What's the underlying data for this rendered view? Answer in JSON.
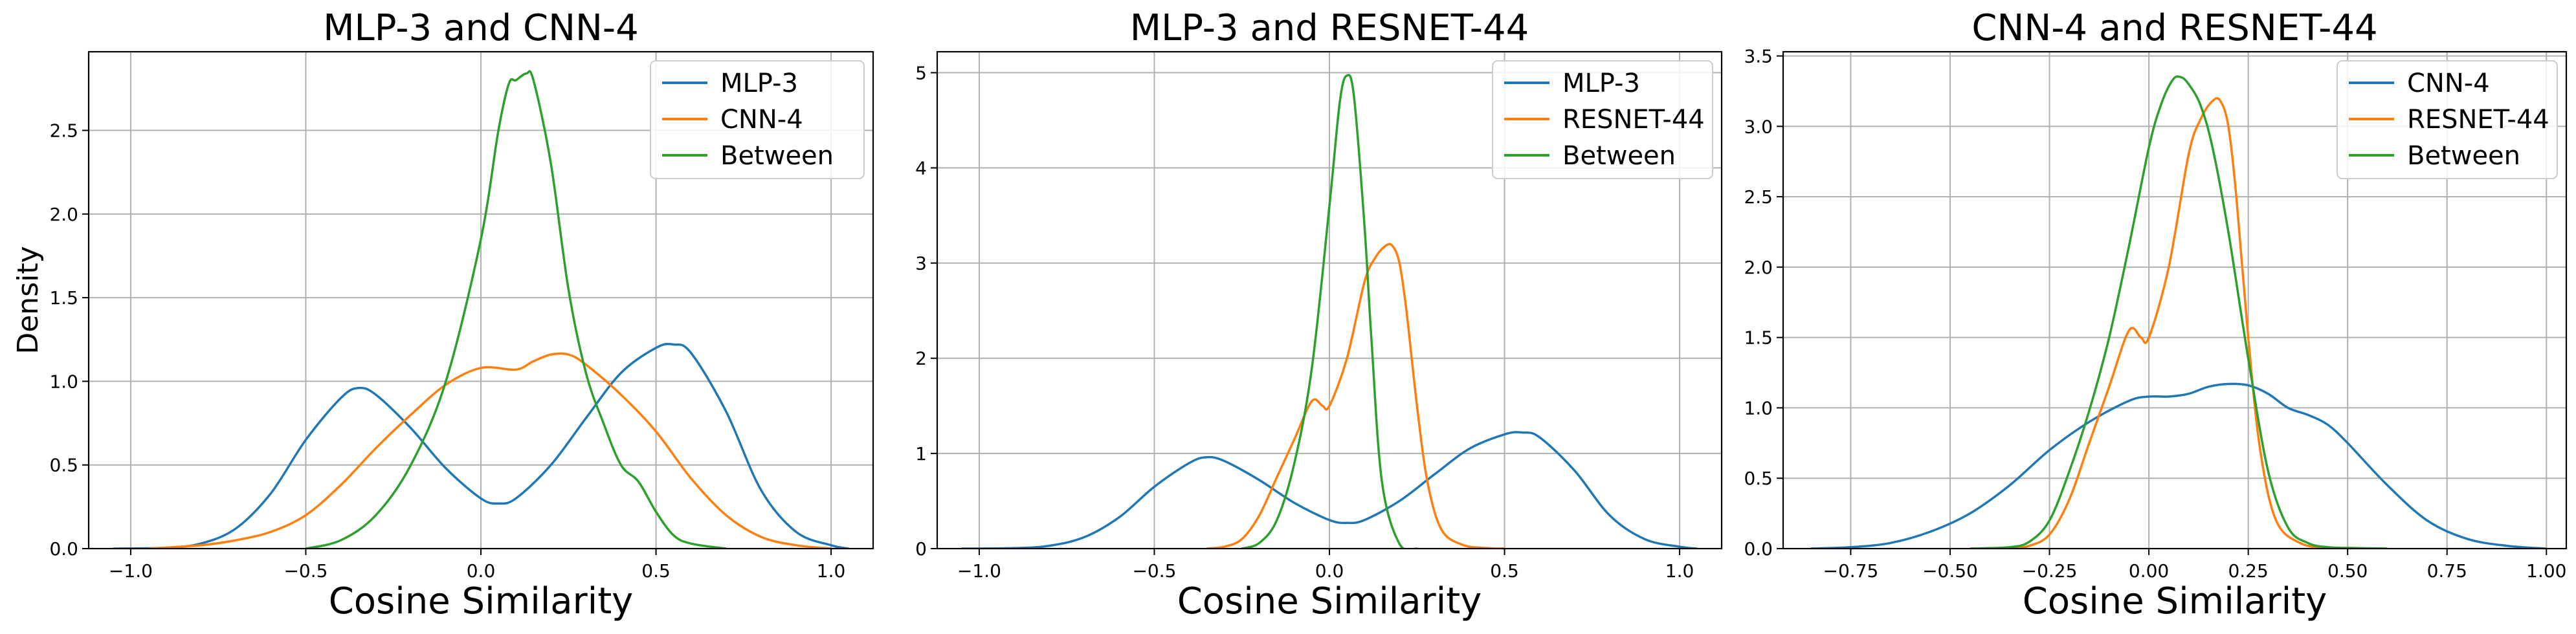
{
  "chart_data": [
    {
      "type": "line",
      "title": "MLP-3 and CNN-4",
      "xlabel": "Cosine Similarity",
      "ylabel": "Density",
      "xlim": [
        -1.12,
        1.12
      ],
      "ylim": [
        0,
        2.97
      ],
      "xticks": [
        -1.0,
        -0.5,
        0.0,
        0.5,
        1.0
      ],
      "xtick_labels": [
        "−1.0",
        "−0.5",
        "0.0",
        "0.5",
        "1.0"
      ],
      "yticks": [
        0.0,
        0.5,
        1.0,
        1.5,
        2.0,
        2.5
      ],
      "ytick_labels": [
        "0.0",
        "0.5",
        "1.0",
        "1.5",
        "2.0",
        "2.5"
      ],
      "grid": true,
      "legend": "top-right",
      "series": [
        {
          "name": "MLP-3",
          "color": "#1f77b4",
          "x": [
            -1.05,
            -0.9,
            -0.8,
            -0.7,
            -0.6,
            -0.5,
            -0.4,
            -0.35,
            -0.3,
            -0.2,
            -0.1,
            0.0,
            0.05,
            0.1,
            0.2,
            0.3,
            0.4,
            0.5,
            0.55,
            0.6,
            0.7,
            0.8,
            0.9,
            1.0,
            1.05
          ],
          "y": [
            0.0,
            0.005,
            0.03,
            0.12,
            0.33,
            0.65,
            0.9,
            0.96,
            0.92,
            0.72,
            0.48,
            0.3,
            0.27,
            0.3,
            0.5,
            0.78,
            1.05,
            1.2,
            1.22,
            1.17,
            0.82,
            0.35,
            0.1,
            0.02,
            0.0
          ]
        },
        {
          "name": "CNN-4",
          "color": "#ff7f0e",
          "x": [
            -0.95,
            -0.8,
            -0.7,
            -0.6,
            -0.5,
            -0.4,
            -0.3,
            -0.2,
            -0.1,
            0.0,
            0.1,
            0.15,
            0.2,
            0.25,
            0.3,
            0.4,
            0.5,
            0.6,
            0.7,
            0.8,
            0.9,
            1.0
          ],
          "y": [
            0.0,
            0.02,
            0.05,
            0.1,
            0.2,
            0.38,
            0.6,
            0.8,
            0.98,
            1.08,
            1.07,
            1.12,
            1.16,
            1.16,
            1.1,
            0.92,
            0.7,
            0.42,
            0.2,
            0.07,
            0.02,
            0.0
          ]
        },
        {
          "name": "Between",
          "color": "#2ca02c",
          "x": [
            -0.5,
            -0.4,
            -0.3,
            -0.2,
            -0.1,
            0.0,
            0.05,
            0.08,
            0.1,
            0.13,
            0.15,
            0.2,
            0.25,
            0.3,
            0.35,
            0.4,
            0.45,
            0.5,
            0.55,
            0.6,
            0.7
          ],
          "y": [
            0.0,
            0.05,
            0.2,
            0.5,
            1.0,
            1.85,
            2.5,
            2.78,
            2.8,
            2.84,
            2.8,
            2.3,
            1.55,
            1.05,
            0.75,
            0.5,
            0.4,
            0.22,
            0.08,
            0.03,
            0.0
          ]
        }
      ]
    },
    {
      "type": "line",
      "title": "MLP-3 and RESNET-44",
      "xlabel": "Cosine Similarity",
      "ylabel": "",
      "xlim": [
        -1.12,
        1.12
      ],
      "ylim": [
        0,
        5.22
      ],
      "xticks": [
        -1.0,
        -0.5,
        0.0,
        0.5,
        1.0
      ],
      "xtick_labels": [
        "−1.0",
        "−0.5",
        "0.0",
        "0.5",
        "1.0"
      ],
      "yticks": [
        0,
        1,
        2,
        3,
        4,
        5
      ],
      "ytick_labels": [
        "0",
        "1",
        "2",
        "3",
        "4",
        "5"
      ],
      "grid": true,
      "legend": "top-right",
      "series": [
        {
          "name": "MLP-3",
          "color": "#1f77b4",
          "x": [
            -1.05,
            -0.9,
            -0.8,
            -0.7,
            -0.6,
            -0.5,
            -0.4,
            -0.35,
            -0.3,
            -0.2,
            -0.1,
            0.0,
            0.05,
            0.1,
            0.2,
            0.3,
            0.4,
            0.5,
            0.55,
            0.6,
            0.7,
            0.8,
            0.9,
            1.0,
            1.05
          ],
          "y": [
            0.0,
            0.005,
            0.03,
            0.12,
            0.33,
            0.65,
            0.9,
            0.96,
            0.92,
            0.72,
            0.48,
            0.3,
            0.27,
            0.3,
            0.5,
            0.78,
            1.05,
            1.2,
            1.22,
            1.17,
            0.82,
            0.35,
            0.1,
            0.02,
            0.0
          ]
        },
        {
          "name": "RESNET-44",
          "color": "#ff7f0e",
          "x": [
            -0.35,
            -0.3,
            -0.25,
            -0.2,
            -0.15,
            -0.1,
            -0.05,
            -0.02,
            0.0,
            0.05,
            0.1,
            0.13,
            0.16,
            0.18,
            0.2,
            0.22,
            0.25,
            0.28,
            0.32,
            0.38,
            0.45,
            0.5
          ],
          "y": [
            0.0,
            0.02,
            0.1,
            0.35,
            0.75,
            1.15,
            1.55,
            1.5,
            1.5,
            2.0,
            2.8,
            3.05,
            3.18,
            3.18,
            3.0,
            2.5,
            1.5,
            0.7,
            0.2,
            0.04,
            0.005,
            0.0
          ]
        },
        {
          "name": "Between",
          "color": "#2ca02c",
          "x": [
            -0.25,
            -0.2,
            -0.15,
            -0.1,
            -0.05,
            0.0,
            0.03,
            0.05,
            0.07,
            0.1,
            0.12,
            0.15,
            0.2,
            0.25
          ],
          "y": [
            0.0,
            0.06,
            0.3,
            0.9,
            1.9,
            3.6,
            4.7,
            4.97,
            4.75,
            3.4,
            2.2,
            0.7,
            0.05,
            0.0
          ]
        }
      ]
    },
    {
      "type": "line",
      "title": "CNN-4 and RESNET-44",
      "xlabel": "Cosine Similarity",
      "ylabel": "",
      "xlim": [
        -0.92,
        1.05
      ],
      "ylim": [
        0,
        3.53
      ],
      "xticks": [
        -0.75,
        -0.5,
        -0.25,
        0.0,
        0.25,
        0.5,
        0.75,
        1.0
      ],
      "xtick_labels": [
        "−0.75",
        "−0.50",
        "−0.25",
        "0.00",
        "0.25",
        "0.50",
        "0.75",
        "1.00"
      ],
      "yticks": [
        0.0,
        0.5,
        1.0,
        1.5,
        2.0,
        2.5,
        3.0,
        3.5
      ],
      "ytick_labels": [
        "0.0",
        "0.5",
        "1.0",
        "1.5",
        "2.0",
        "2.5",
        "3.0",
        "3.5"
      ],
      "grid": true,
      "legend": "top-right",
      "series": [
        {
          "name": "CNN-4",
          "color": "#1f77b4",
          "x": [
            -0.85,
            -0.75,
            -0.65,
            -0.55,
            -0.45,
            -0.35,
            -0.25,
            -0.15,
            -0.05,
            0.0,
            0.05,
            0.1,
            0.15,
            0.2,
            0.25,
            0.3,
            0.35,
            0.4,
            0.45,
            0.5,
            0.6,
            0.7,
            0.8,
            0.9,
            1.0
          ],
          "y": [
            0.0,
            0.01,
            0.04,
            0.12,
            0.25,
            0.45,
            0.7,
            0.9,
            1.05,
            1.08,
            1.08,
            1.1,
            1.15,
            1.17,
            1.16,
            1.1,
            1.0,
            0.95,
            0.88,
            0.75,
            0.45,
            0.2,
            0.07,
            0.02,
            0.0
          ]
        },
        {
          "name": "RESNET-44",
          "color": "#ff7f0e",
          "x": [
            -0.35,
            -0.3,
            -0.25,
            -0.2,
            -0.15,
            -0.1,
            -0.05,
            -0.02,
            0.0,
            0.05,
            0.1,
            0.13,
            0.16,
            0.18,
            0.2,
            0.22,
            0.25,
            0.28,
            0.32,
            0.38,
            0.45,
            0.5
          ],
          "y": [
            0.0,
            0.02,
            0.1,
            0.35,
            0.75,
            1.15,
            1.55,
            1.5,
            1.5,
            2.0,
            2.8,
            3.05,
            3.18,
            3.18,
            3.0,
            2.5,
            1.5,
            0.7,
            0.2,
            0.04,
            0.005,
            0.0
          ]
        },
        {
          "name": "Between",
          "color": "#2ca02c",
          "x": [
            -0.45,
            -0.35,
            -0.3,
            -0.25,
            -0.2,
            -0.15,
            -0.1,
            -0.05,
            0.0,
            0.03,
            0.06,
            0.08,
            0.1,
            0.13,
            0.16,
            0.2,
            0.25,
            0.3,
            0.35,
            0.4,
            0.45,
            0.5,
            0.6
          ],
          "y": [
            0.0,
            0.01,
            0.05,
            0.2,
            0.55,
            0.98,
            1.5,
            2.15,
            2.85,
            3.15,
            3.33,
            3.35,
            3.3,
            3.15,
            2.85,
            2.25,
            1.35,
            0.55,
            0.15,
            0.04,
            0.01,
            0.005,
            0.0
          ]
        }
      ]
    }
  ]
}
